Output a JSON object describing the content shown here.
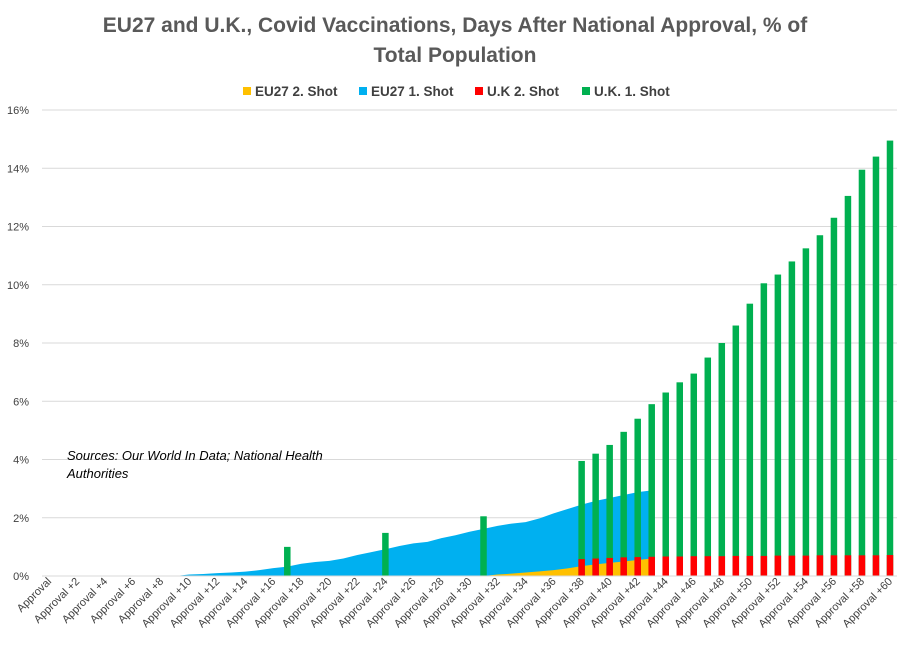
{
  "chart_data": {
    "type": "bar",
    "title_lines": [
      "EU27 and U.K., Covid Vaccinations, Days After National Approval, % of",
      "Total Population"
    ],
    "xlabel": "",
    "ylabel": "",
    "ylim": [
      0,
      16
    ],
    "y_ticks": [
      "0%",
      "2%",
      "4%",
      "6%",
      "8%",
      "10%",
      "12%",
      "14%",
      "16%"
    ],
    "grid": true,
    "legend_position": "top",
    "annotation": "Sources: Our World In Data; National Health Authorities",
    "categories": [
      "Approval",
      "Approval +1",
      "Approval +2",
      "Approval +3",
      "Approval +4",
      "Approval +5",
      "Approval +6",
      "Approval +7",
      "Approval +8",
      "Approval +9",
      "Approval +10",
      "Approval +11",
      "Approval +12",
      "Approval +13",
      "Approval +14",
      "Approval +15",
      "Approval +16",
      "Approval +17",
      "Approval +18",
      "Approval +19",
      "Approval +20",
      "Approval +21",
      "Approval +22",
      "Approval +23",
      "Approval +24",
      "Approval +25",
      "Approval +26",
      "Approval +27",
      "Approval +28",
      "Approval +29",
      "Approval +30",
      "Approval +31",
      "Approval +32",
      "Approval +33",
      "Approval +34",
      "Approval +35",
      "Approval +36",
      "Approval +37",
      "Approval +38",
      "Approval +39",
      "Approval +40",
      "Approval +41",
      "Approval +42",
      "Approval +43",
      "Approval +44",
      "Approval +45",
      "Approval +46",
      "Approval +47",
      "Approval +48",
      "Approval +49",
      "Approval +50",
      "Approval +51",
      "Approval +52",
      "Approval +53",
      "Approval +54",
      "Approval +55",
      "Approval +56",
      "Approval +57",
      "Approval +58",
      "Approval +59",
      "Approval +60"
    ],
    "visible_tick_labels": [
      "Approval",
      "Approval +2",
      "Approval +4",
      "Approval +6",
      "Approval +8",
      "Approval +10",
      "Approval +12",
      "Approval +14",
      "Approval +16",
      "Approval +18",
      "Approval +20",
      "Approval +22",
      "Approval +24",
      "Approval +26",
      "Approval +28",
      "Approval +30",
      "Approval +32",
      "Approval +34",
      "Approval +36",
      "Approval +38",
      "Approval +40",
      "Approval +42",
      "Approval +44",
      "Approval +46",
      "Approval +48",
      "Approval +50",
      "Approval +52",
      "Approval +54",
      "Approval +56",
      "Approval +58",
      "Approval +60"
    ],
    "series": [
      {
        "name": "EU27 2. Shot",
        "kind": "area",
        "color": "#FFC000",
        "values": [
          0,
          0,
          0,
          0,
          0,
          0,
          0,
          0,
          0,
          0,
          0,
          0,
          0,
          0,
          0,
          0,
          0,
          0,
          0,
          0,
          0,
          0,
          0,
          0,
          0,
          0,
          0,
          0,
          0,
          0,
          0,
          0,
          0.05,
          0.08,
          0.12,
          0.16,
          0.2,
          0.26,
          0.34,
          0.4,
          0.45,
          0.5,
          0.55,
          0.6,
          null,
          null,
          null,
          null,
          null,
          null,
          null,
          null,
          null,
          null,
          null,
          null,
          null,
          null,
          null,
          null,
          null
        ]
      },
      {
        "name": "EU27 1. Shot",
        "kind": "area",
        "color": "#00B0F0",
        "values": [
          0,
          0,
          0,
          0,
          0,
          0,
          0,
          0,
          0,
          0,
          0.05,
          0.07,
          0.1,
          0.12,
          0.15,
          0.2,
          0.27,
          0.32,
          0.42,
          0.48,
          0.52,
          0.6,
          0.72,
          0.82,
          0.92,
          1.03,
          1.12,
          1.17,
          1.3,
          1.4,
          1.52,
          1.62,
          1.72,
          1.8,
          1.85,
          1.98,
          2.15,
          2.3,
          2.45,
          2.58,
          2.68,
          2.78,
          2.88,
          2.94,
          null,
          null,
          null,
          null,
          null,
          null,
          null,
          null,
          null,
          null,
          null,
          null,
          null,
          null,
          null,
          null,
          null
        ]
      },
      {
        "name": "U.K 2. Shot",
        "kind": "bar",
        "color": "#FF0000",
        "values": [
          null,
          null,
          null,
          null,
          null,
          null,
          null,
          null,
          null,
          null,
          null,
          null,
          null,
          null,
          null,
          null,
          null,
          null,
          null,
          null,
          null,
          null,
          null,
          null,
          null,
          null,
          null,
          null,
          null,
          null,
          null,
          null,
          null,
          null,
          null,
          null,
          null,
          null,
          0.58,
          0.6,
          0.62,
          0.64,
          0.65,
          0.66,
          0.67,
          0.67,
          0.68,
          0.68,
          0.68,
          0.69,
          0.69,
          0.69,
          0.7,
          0.7,
          0.7,
          0.71,
          0.71,
          0.71,
          0.71,
          0.71,
          0.72
        ]
      },
      {
        "name": "U.K. 1. Shot",
        "kind": "bar",
        "color": "#00B050",
        "values": [
          null,
          null,
          null,
          null,
          null,
          null,
          null,
          null,
          null,
          null,
          null,
          null,
          null,
          null,
          null,
          null,
          null,
          1.0,
          null,
          null,
          null,
          null,
          null,
          null,
          1.48,
          null,
          null,
          null,
          null,
          null,
          null,
          2.05,
          null,
          null,
          null,
          null,
          null,
          null,
          3.95,
          4.2,
          4.5,
          4.95,
          5.4,
          5.9,
          6.3,
          6.65,
          6.95,
          7.5,
          8.0,
          8.6,
          9.35,
          10.05,
          10.35,
          10.8,
          11.25,
          11.7,
          12.3,
          13.05,
          13.95,
          14.4,
          14.95
        ]
      }
    ]
  }
}
